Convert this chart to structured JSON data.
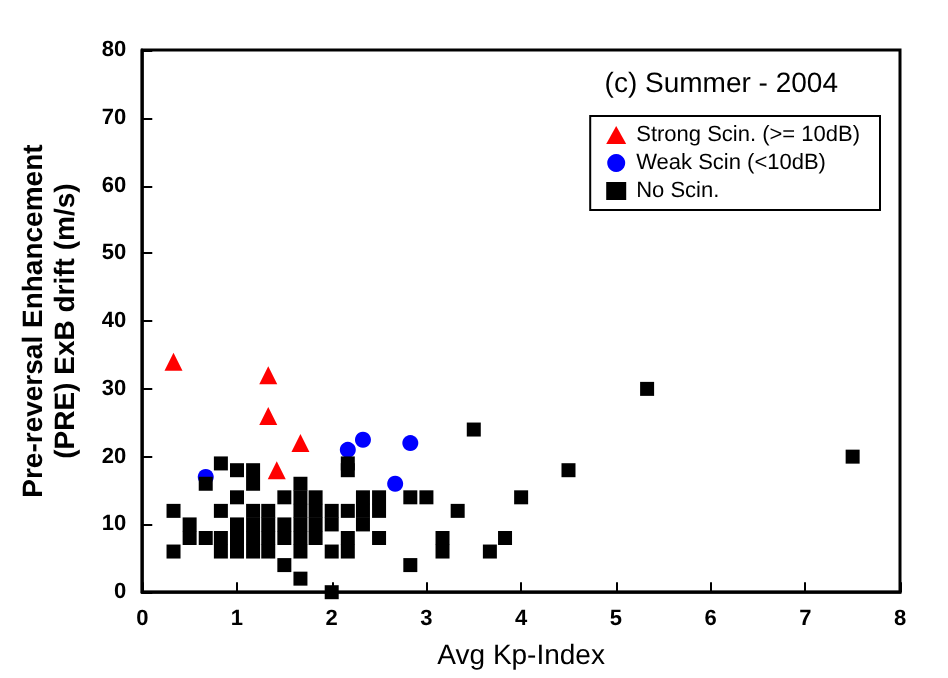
{
  "chart_data": {
    "type": "scatter",
    "xlabel": "Avg Kp-Index",
    "ylabel": "Pre-reversal Enhancement\n(PRE) ExB drift (m/s)",
    "annotations": [
      "(c) Summer - 2004"
    ],
    "xlim": [
      0,
      8
    ],
    "xticks": [
      0,
      1,
      2,
      3,
      4,
      5,
      6,
      7,
      8
    ],
    "ylim": [
      0,
      80
    ],
    "yticks": [
      0,
      10,
      20,
      30,
      40,
      50,
      60,
      70,
      80
    ],
    "grid": false,
    "legend": "top right",
    "series": [
      {
        "name": "Strong Scin. (>= 10dB)",
        "color": "#ff0000",
        "marker": "triangle",
        "x": [
          0.33,
          1.33,
          1.33,
          1.67,
          1.42
        ],
        "values": [
          34,
          32,
          26,
          22,
          18
        ]
      },
      {
        "name": "Weak Scin (<10dB)",
        "color": "#0000ff",
        "marker": "circle",
        "x": [
          0.67,
          2.17,
          2.33,
          2.83,
          2.67
        ],
        "values": [
          17,
          21,
          22.5,
          22,
          16
        ]
      },
      {
        "name": "No Scin.",
        "color": "#000000",
        "marker": "square",
        "x": [
          0.33,
          0.33,
          0.5,
          0.5,
          0.67,
          0.67,
          0.83,
          0.83,
          0.83,
          0.83,
          1,
          1,
          1,
          1,
          1,
          1.17,
          1.17,
          1.17,
          1.17,
          1.17,
          1.17,
          1.33,
          1.33,
          1.33,
          1.33,
          1.5,
          1.5,
          1.5,
          1.5,
          1.67,
          1.67,
          1.67,
          1.67,
          1.67,
          1.67,
          1.67,
          1.83,
          1.83,
          1.83,
          1.83,
          2,
          2,
          2,
          2,
          2.17,
          2.17,
          2.17,
          2.17,
          2.17,
          2.33,
          2.33,
          2.33,
          2.5,
          2.5,
          2.5,
          2.83,
          2.83,
          3,
          3.17,
          3.17,
          3.33,
          3.5,
          3.67,
          3.83,
          4,
          4.5,
          5.33,
          7.5
        ],
        "values": [
          12,
          6,
          10,
          8,
          16,
          8,
          19,
          12,
          8,
          6,
          18,
          14,
          10,
          8,
          6,
          18,
          16,
          12,
          10,
          8,
          6,
          12,
          10,
          8,
          6,
          14,
          10,
          8,
          4,
          16,
          14,
          12,
          10,
          8,
          6,
          2,
          14,
          12,
          10,
          8,
          12,
          10,
          6,
          0,
          19,
          18,
          12,
          8,
          6,
          14,
          12,
          10,
          14,
          12,
          8,
          14,
          4,
          14,
          8,
          6,
          12,
          24,
          6,
          8,
          14,
          18,
          30,
          20
        ]
      }
    ]
  }
}
